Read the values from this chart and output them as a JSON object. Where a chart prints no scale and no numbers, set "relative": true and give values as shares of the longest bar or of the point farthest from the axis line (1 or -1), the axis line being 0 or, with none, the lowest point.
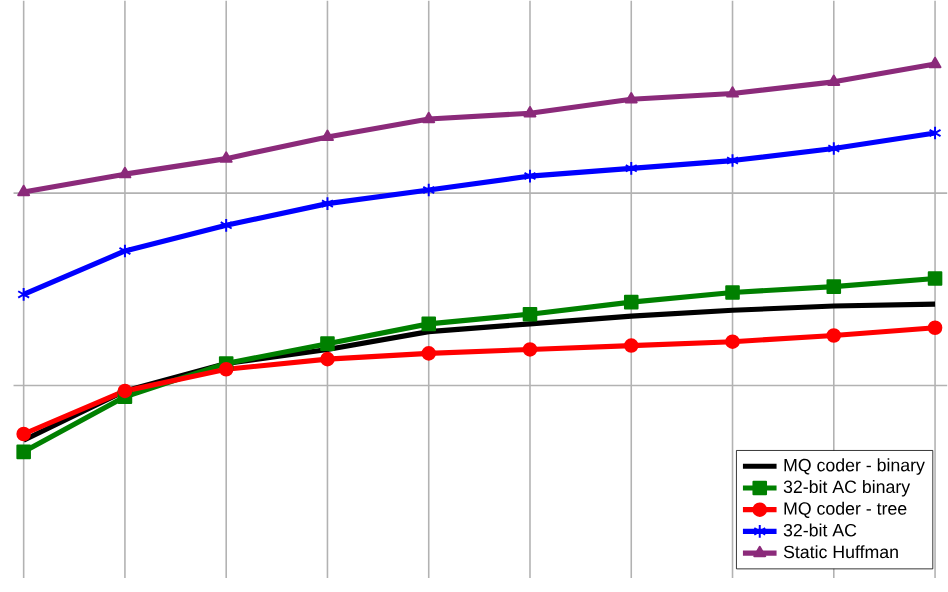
{
  "chart_data": {
    "type": "line",
    "relative": true,
    "grid": true,
    "legend": "bottom right",
    "categories": [
      null,
      null,
      null,
      null,
      null,
      null,
      null,
      null,
      null,
      null
    ],
    "series": [
      {
        "name": "MQ coder - binary",
        "color": "#000000",
        "marker": "none",
        "values": [
          0.03,
          0.157,
          0.228,
          0.264,
          0.31,
          0.33,
          0.35,
          0.365,
          0.376,
          0.381
        ]
      },
      {
        "name": "32-bit AC binary",
        "color": "#008000",
        "marker": "square",
        "values": [
          0,
          0.142,
          0.228,
          0.279,
          0.33,
          0.355,
          0.386,
          0.411,
          0.426,
          0.447
        ]
      },
      {
        "name": "MQ coder - tree",
        "color": "#ff0000",
        "marker": "circle",
        "values": [
          0.046,
          0.157,
          0.213,
          0.239,
          0.254,
          0.264,
          0.274,
          0.284,
          0.3,
          0.32
        ]
      },
      {
        "name": "32-bit AC",
        "color": "#0000ff",
        "marker": "cross",
        "values": [
          0.406,
          0.518,
          0.584,
          0.64,
          0.675,
          0.711,
          0.731,
          0.751,
          0.782,
          0.822
        ]
      },
      {
        "name": "Static Huffman",
        "color": "#8b2a7a",
        "marker": "triangle",
        "values": [
          0.67,
          0.716,
          0.756,
          0.812,
          0.858,
          0.873,
          0.909,
          0.924,
          0.954,
          1
        ]
      }
    ]
  }
}
